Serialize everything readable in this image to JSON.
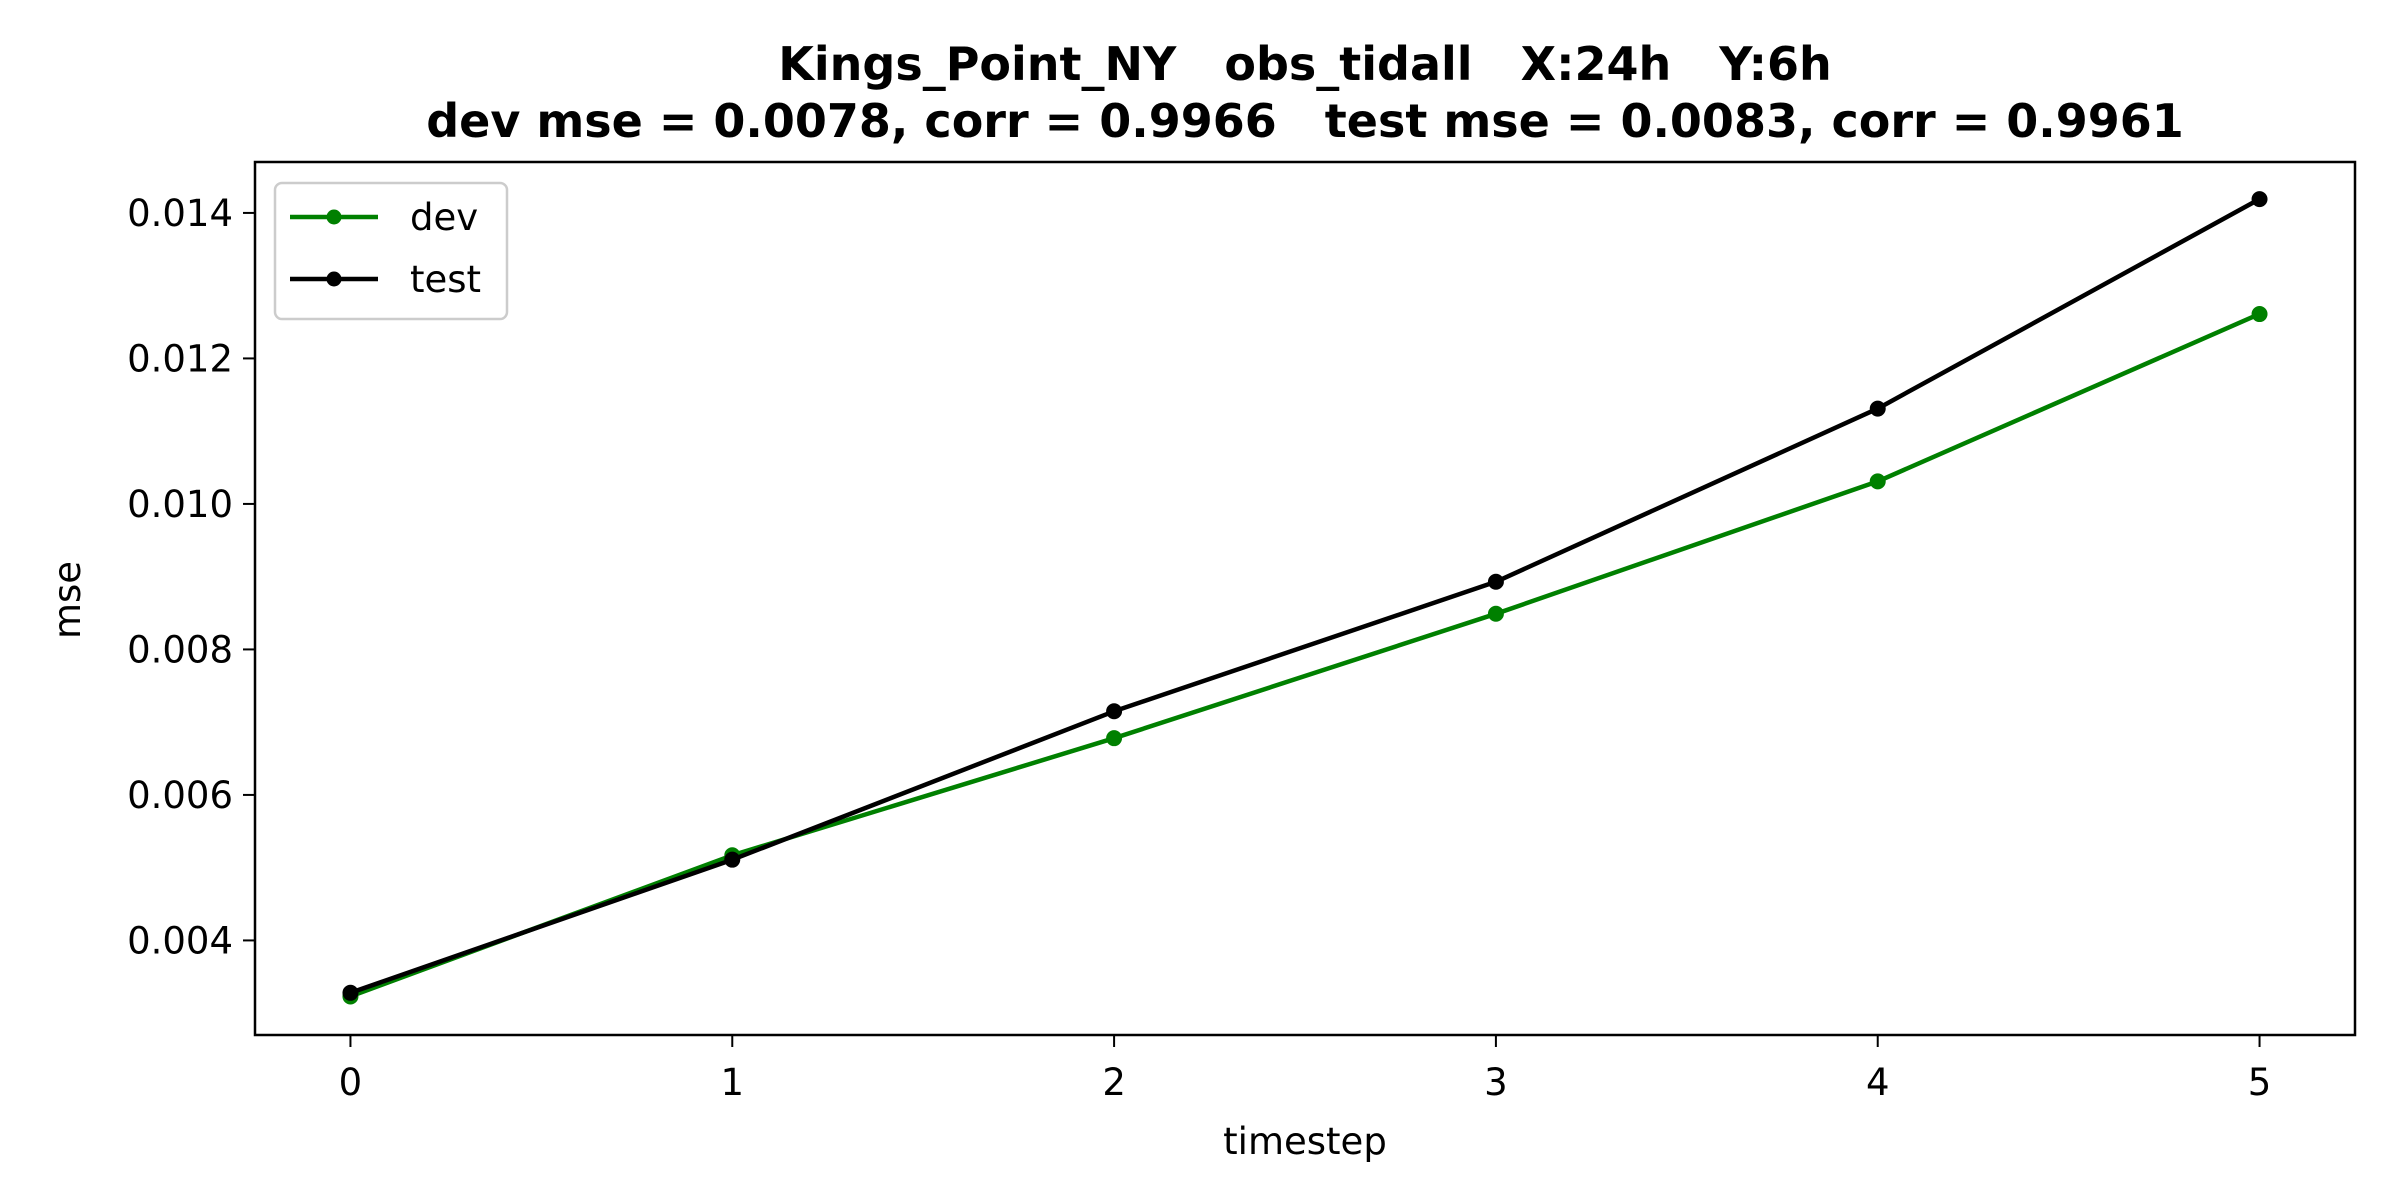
{
  "chart_data": {
    "type": "line",
    "title_line1": "Kings_Point_NY   obs_tidall   X:24h   Y:6h",
    "title_line2": "dev mse = 0.0078, corr = 0.9966   test mse = 0.0083, corr = 0.9961",
    "xlabel": "timestep",
    "ylabel": "mse",
    "x": [
      0,
      1,
      2,
      3,
      4,
      5
    ],
    "x_tick_labels": [
      "0",
      "1",
      "2",
      "3",
      "4",
      "5"
    ],
    "y_ticks": [
      0.004,
      0.006,
      0.008,
      0.01,
      0.012,
      0.014
    ],
    "y_tick_labels": [
      "0.004",
      "0.006",
      "0.008",
      "0.010",
      "0.012",
      "0.014"
    ],
    "xlim": [
      -0.25,
      5.25
    ],
    "ylim": [
      0.0027,
      0.0147
    ],
    "grid": false,
    "legend_position": "top-left",
    "series": [
      {
        "name": "dev",
        "color": "#008000",
        "values": [
          0.00323,
          0.00517,
          0.00678,
          0.00849,
          0.01031,
          0.01261
        ]
      },
      {
        "name": "test",
        "color": "#000000",
        "values": [
          0.00328,
          0.00511,
          0.00715,
          0.00893,
          0.01131,
          0.01419
        ]
      }
    ]
  }
}
